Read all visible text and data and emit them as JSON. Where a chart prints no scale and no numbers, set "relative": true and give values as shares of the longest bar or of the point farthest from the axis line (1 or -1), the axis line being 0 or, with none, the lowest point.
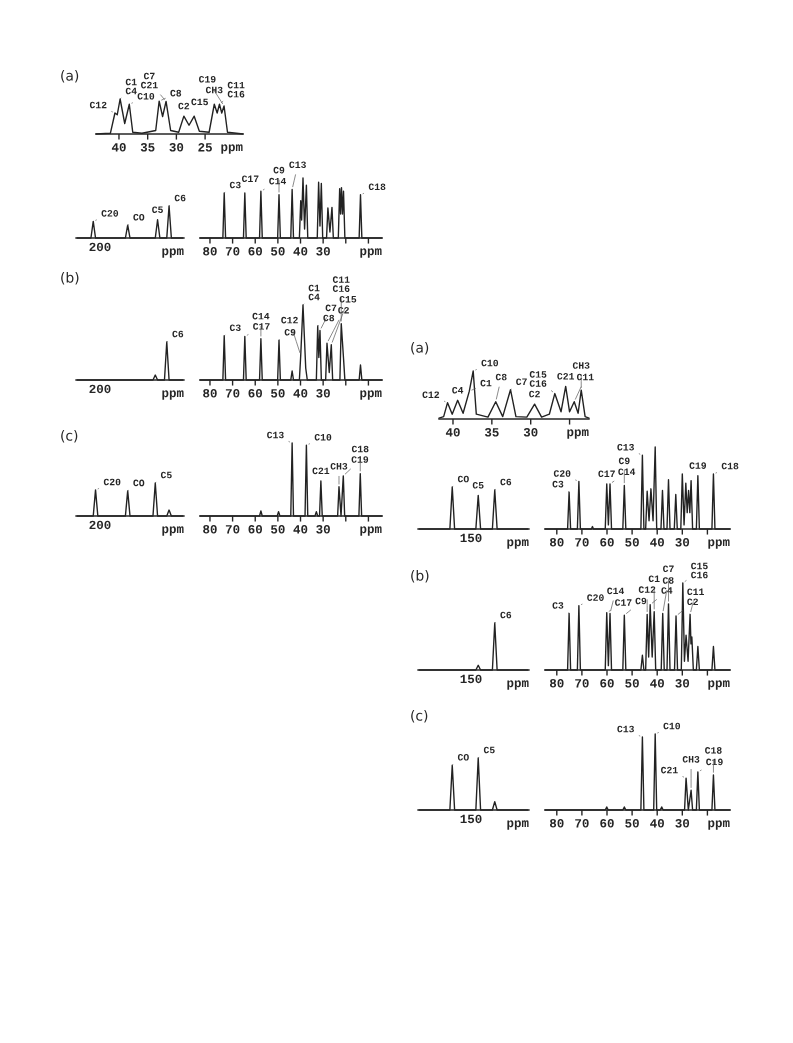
{
  "chart_data": [
    {
      "type": "line",
      "relative": true,
      "title": "(a)",
      "xlabel": "ppm",
      "xlim": [
        44,
        18.4
      ],
      "xticks": [
        40,
        35,
        30,
        25
      ],
      "series": [
        {
          "color": "#222222",
          "x": [
            44,
            41.5,
            40.7,
            40.3,
            39.8,
            39.0,
            38.2,
            37.6,
            36,
            33.6,
            33.0,
            32.4,
            31.8,
            31.0,
            29.6,
            28.7,
            27.8,
            26.9,
            26.0,
            24.3,
            23.4,
            22.9,
            22.5,
            22.1,
            21.7,
            21.1,
            18.4
          ],
          "values": [
            0,
            0.02,
            0.6,
            0.55,
            1,
            0.3,
            0.85,
            0.05,
            0.02,
            0.1,
            0.94,
            0.5,
            0.93,
            0.1,
            0.05,
            0.51,
            0.25,
            0.51,
            0.08,
            0.05,
            0.85,
            0.6,
            0.85,
            0.6,
            0.8,
            0.05,
            0
          ]
        }
      ],
      "annotations": [
        {
          "text": "C12",
          "x": 40.7,
          "y": 0.6
        },
        {
          "text": "C1\nC4",
          "x": 39.8,
          "y": 1
        },
        {
          "text": "C10",
          "x": 38.2,
          "y": 0.85
        },
        {
          "text": "C8",
          "x": 33.0,
          "y": 0.94
        },
        {
          "text": "C7\nC21",
          "x": 31.8,
          "y": 0.93
        },
        {
          "text": "C2",
          "x": 28.7,
          "y": 0.51
        },
        {
          "text": "C15",
          "x": 26.9,
          "y": 0.51
        },
        {
          "text": "CH3",
          "x": 23.4,
          "y": 0.85
        },
        {
          "text": "C11\nC16",
          "x": 22.5,
          "y": 0.85
        },
        {
          "text": "C19",
          "x": 21.7,
          "y": 0.8
        }
      ]
    },
    {
      "type": "line",
      "relative": true,
      "xlabel": "ppm",
      "categories": [
        null,
        null,
        null,
        null,
        null,
        null,
        null,
        null,
        null,
        null,
        null,
        null,
        null,
        null,
        null,
        null,
        null,
        null,
        null,
        null,
        null,
        null,
        null,
        null,
        null,
        null,
        null,
        null,
        null,
        null,
        null,
        null,
        null,
        null,
        null,
        null,
        null,
        null,
        null,
        null,
        null,
        null,
        null,
        null,
        null,
        null,
        null
      ],
      "series": [
        {
          "color": "#222222",
          "values": [
            0,
            0,
            0,
            0,
            0,
            0,
            0,
            0.52,
            0,
            0,
            0,
            0,
            0,
            0,
            0,
            0,
            0,
            0,
            0,
            0,
            0,
            0,
            0.4,
            0,
            0,
            0,
            0,
            0,
            0,
            0,
            0,
            0,
            0,
            0,
            0,
            0.57,
            0,
            0,
            0,
            0,
            1,
            0,
            0,
            0,
            0,
            0,
            0
          ]
        }
      ],
      "annotations": [
        "C20",
        "CO",
        "C5",
        "C6",
        "200"
      ]
    },
    {
      "type": "line",
      "relative": true,
      "xlabel": "ppm",
      "xlim": [
        84.4,
        4
      ],
      "xticks": [
        80,
        70,
        60,
        50,
        40,
        30,
        {
          "value": 20,
          "label": null
        },
        {
          "value": 10,
          "label": null
        }
      ],
      "series": [
        {
          "color": "#222222",
          "x": [
            84.4,
            74.3,
            73.7,
            73.1,
            65.2,
            64.6,
            64.0,
            58.1,
            57.5,
            56.9,
            50.1,
            49.5,
            48.9,
            44.3,
            43.7,
            43.1,
            40.5,
            39.9,
            39.5,
            38.9,
            38.2,
            37.4,
            36.8,
            32.6,
            32.0,
            31.4,
            30.8,
            30.2,
            28.5,
            27.9,
            27.0,
            26.1,
            25.5,
            23.3,
            22.7,
            22.3,
            21.9,
            21.45,
            21.0,
            20.4,
            14.1,
            13.5,
            12.9,
            4
          ],
          "values": [
            0,
            0,
            0.75,
            0,
            0,
            0.75,
            0,
            0,
            0.78,
            0,
            0,
            0.72,
            0,
            0,
            0.81,
            0,
            0,
            0.62,
            0.3,
            1,
            0.15,
            0.88,
            0,
            0,
            0.93,
            0.2,
            0.91,
            0,
            0,
            0.5,
            0.1,
            0.51,
            0,
            0,
            0.82,
            0.4,
            0.84,
            0.4,
            0.78,
            0,
            0,
            0.72,
            0,
            0
          ]
        }
      ],
      "annotations": [
        {
          "text": "C3",
          "x": 73.7,
          "y": 0.75
        },
        {
          "text": "C17",
          "x": 64.6,
          "y": 0.75
        },
        {
          "text": "C14",
          "x": 57.5,
          "y": 0.78
        },
        {
          "text": "C9",
          "x": 49.5,
          "y": 0.72
        },
        {
          "text": "C13",
          "x": 43.7,
          "y": 0.81
        },
        {
          "text": "C18",
          "x": 13.5,
          "y": 0.72
        }
      ]
    },
    {
      "type": "line",
      "relative": true,
      "title": "(b)",
      "xlabel": "ppm",
      "categories": [
        null,
        null,
        null,
        null,
        null,
        null,
        null,
        null,
        null,
        null,
        null,
        null,
        null,
        null,
        null,
        null,
        null,
        null,
        null,
        null,
        null,
        null,
        null,
        null,
        null,
        null,
        null,
        null,
        null,
        null,
        null,
        null,
        null,
        null,
        null,
        null,
        null,
        null,
        null,
        null,
        null,
        null,
        null,
        null,
        null,
        null,
        null
      ],
      "series": [
        {
          "color": "#222222",
          "values": [
            0,
            0,
            0,
            0,
            0,
            0,
            0,
            0,
            0,
            0,
            0,
            0,
            0,
            0,
            0,
            0,
            0,
            0,
            0,
            0,
            0,
            0,
            0,
            0,
            0,
            0,
            0,
            0,
            0,
            0,
            0,
            0,
            0,
            0,
            0.13,
            0,
            0,
            0,
            0,
            1,
            0,
            0,
            0,
            0,
            0,
            0,
            0
          ]
        }
      ],
      "annotations": [
        "C6",
        "200"
      ]
    },
    {
      "type": "line",
      "relative": true,
      "xlabel": "ppm",
      "xlim": [
        84.4,
        4
      ],
      "xticks": [
        80,
        70,
        60,
        50,
        40,
        30,
        {
          "value": 20,
          "label": null
        },
        {
          "value": 10,
          "label": null
        }
      ],
      "series": [
        {
          "color": "#222222",
          "x": [
            84.4,
            74.3,
            73.7,
            73.1,
            65.2,
            64.6,
            64.0,
            58.1,
            57.5,
            56.9,
            50.1,
            49.5,
            48.9,
            44.3,
            43.7,
            43.1,
            40.5,
            39.9,
            38.9,
            37.7,
            37.0,
            33.0,
            32.4,
            31.9,
            31.4,
            30.8,
            28.9,
            28.3,
            27.3,
            26.4,
            25.8,
            22.6,
            22.0,
            21.0,
            20.4,
            14.1,
            13.5,
            12.9,
            4
          ],
          "values": [
            0,
            0,
            0.59,
            0,
            0,
            0.58,
            0,
            0,
            0.55,
            0,
            0,
            0.53,
            0,
            0,
            0.12,
            0,
            0,
            0.33,
            1,
            0.16,
            0,
            0,
            0.72,
            0.3,
            0.66,
            0,
            0,
            0.49,
            0.1,
            0.47,
            0,
            0,
            0.75,
            0.29,
            0,
            0,
            0.2,
            0,
            0
          ]
        }
      ],
      "annotations": [
        {
          "text": "C3",
          "x": 73.7,
          "y": 0.59
        },
        {
          "text": "C17",
          "x": 64.6,
          "y": 0.58
        },
        {
          "text": "C14",
          "x": 57.5,
          "y": 0.55
        },
        {
          "text": "C9",
          "x": 49.5,
          "y": 0.53
        },
        {
          "text": "C12",
          "x": 39.9,
          "y": 0.33
        },
        {
          "text": "C1\nC4",
          "x": 38.9,
          "y": 1
        },
        {
          "text": "C8",
          "x": 32.4,
          "y": 0.72
        },
        {
          "text": "C7",
          "x": 31.4,
          "y": 0.66
        },
        {
          "text": "C2",
          "x": 28.3,
          "y": 0.49
        },
        {
          "text": "C15",
          "x": 26.4,
          "y": 0.47
        },
        {
          "text": "C11\nC16",
          "x": 22.0,
          "y": 0.75
        }
      ]
    },
    {
      "type": "line",
      "relative": true,
      "title": "(c)",
      "xlabel": "ppm",
      "categories": [
        null,
        null,
        null,
        null,
        null,
        null,
        null,
        null,
        null,
        null,
        null,
        null,
        null,
        null,
        null,
        null,
        null,
        null,
        null,
        null,
        null,
        null,
        null,
        null,
        null,
        null,
        null,
        null,
        null,
        null,
        null,
        null,
        null,
        null,
        null,
        null,
        null,
        null,
        null,
        null,
        null,
        null,
        null,
        null,
        null,
        null,
        null
      ],
      "series": [
        {
          "color": "#222222",
          "values": [
            0,
            0,
            0,
            0,
            0,
            0,
            0,
            0,
            0.79,
            0,
            0,
            0,
            0,
            0,
            0,
            0,
            0,
            0,
            0,
            0,
            0,
            0,
            0.76,
            0,
            0,
            0,
            0,
            0,
            0,
            0,
            0,
            0,
            0,
            0,
            1,
            0,
            0,
            0,
            0,
            0,
            0.18,
            0,
            0,
            0,
            0,
            0,
            0
          ]
        }
      ],
      "annotations": [
        "C20",
        "CO",
        "C5",
        "200"
      ]
    },
    {
      "type": "line",
      "relative": true,
      "xlabel": "ppm",
      "xlim": [
        84.4,
        4
      ],
      "xticks": [
        80,
        70,
        60,
        50,
        40,
        30,
        {
          "value": 20,
          "label": null
        },
        {
          "value": 10,
          "label": null
        }
      ],
      "series": [
        {
          "color": "#222222",
          "x": [
            84.4,
            58.1,
            57.5,
            56.9,
            50.3,
            49.7,
            49.1,
            44.3,
            43.7,
            43.1,
            38.0,
            37.4,
            36.8,
            33.6,
            33,
            32.4,
            31.6,
            31.0,
            30.4,
            23.6,
            23.0,
            22.1,
            21.1,
            20.5,
            14.2,
            13.6,
            13.0,
            4
          ],
          "values": [
            0,
            0,
            0.07,
            0,
            0,
            0.06,
            0,
            0,
            1,
            0,
            0,
            0.97,
            0,
            0,
            0.06,
            0,
            0,
            0.48,
            0,
            0,
            0.4,
            0,
            0.55,
            0,
            0,
            0.58,
            0,
            0
          ]
        }
      ],
      "annotations": [
        {
          "text": "C13",
          "x": 43.7,
          "y": 1
        },
        {
          "text": "C10",
          "x": 37.4,
          "y": 0.97
        },
        {
          "text": "C21",
          "x": 31.0,
          "y": 0.48
        },
        {
          "text": "CH3",
          "x": 23.0,
          "y": 0.4
        },
        {
          "text": "C19",
          "x": 21.1,
          "y": 0.55
        },
        {
          "text": "C18",
          "x": 13.6,
          "y": 0.58
        }
      ]
    },
    {
      "type": "line",
      "relative": true,
      "title": "(a)",
      "xlabel": "ppm",
      "xlim": [
        41.8,
        22.5
      ],
      "xticks": [
        40,
        35,
        30,
        {
          "value": 25,
          "label": null
        }
      ],
      "series": [
        {
          "color": "#222222",
          "x": [
            41.8,
            41.2,
            40.7,
            40.1,
            39.4,
            38.7,
            37.9,
            37.4,
            37.0,
            35.5,
            34.5,
            33.6,
            32.6,
            31.9,
            30.5,
            29.5,
            28.6,
            27.6,
            26.9,
            26.1,
            25.5,
            25.0,
            24.4,
            23.9,
            23.5,
            23.0,
            22.5
          ],
          "values": [
            0.02,
            0.05,
            0.34,
            0.1,
            0.39,
            0.12,
            0.58,
            1,
            0.1,
            0.04,
            0.36,
            0.05,
            0.61,
            0.05,
            0.04,
            0.31,
            0.04,
            0.1,
            0.53,
            0.15,
            0.68,
            0.15,
            0.36,
            0.12,
            0.6,
            0.05,
            0.02
          ]
        }
      ],
      "annotations": [
        {
          "text": "C12",
          "x": 40.7,
          "y": 0.34
        },
        {
          "text": "C4",
          "x": 39.4,
          "y": 0.39
        },
        {
          "text": "C1",
          "x": 37.9,
          "y": 0.58
        },
        {
          "text": "C10",
          "x": 37.4,
          "y": 1
        },
        {
          "text": "C8",
          "x": 34.5,
          "y": 0.36
        },
        {
          "text": "C7",
          "x": 32.6,
          "y": 0.61
        },
        {
          "text": "C2",
          "x": 29.5,
          "y": 0.31
        },
        {
          "text": "C15\nC16",
          "x": 26.9,
          "y": 0.53
        },
        {
          "text": "C21",
          "x": 25.5,
          "y": 0.68
        },
        {
          "text": "C11",
          "x": 24.4,
          "y": 0.36
        },
        {
          "text": "CH3",
          "x": 23.5,
          "y": 0.6
        }
      ]
    },
    {
      "type": "line",
      "relative": true,
      "xlabel": "ppm",
      "categories": [
        null,
        null,
        null,
        null,
        null,
        null,
        null,
        null,
        null,
        null,
        null,
        null,
        null,
        null,
        null,
        null,
        null,
        null,
        null,
        null,
        null,
        null,
        null,
        null,
        null,
        null,
        null,
        null,
        null,
        null,
        null,
        null,
        null,
        null,
        null,
        null,
        null,
        null,
        null,
        null,
        null,
        null,
        null,
        null,
        null,
        null,
        null
      ],
      "series": [
        {
          "color": "#222222",
          "values": [
            0,
            0,
            0,
            0,
            0,
            0,
            0,
            0,
            0,
            0,
            0,
            0,
            0,
            0,
            1,
            0,
            0,
            0,
            0,
            0,
            0,
            0,
            0,
            0,
            0,
            0.8,
            0,
            0,
            0,
            0,
            0,
            0,
            0.93,
            0,
            0,
            0,
            0,
            0,
            0,
            0,
            0,
            0,
            0,
            0,
            0,
            0,
            0
          ]
        }
      ],
      "annotations": [
        "CO",
        "C5",
        "C6",
        "150"
      ]
    },
    {
      "type": "line",
      "relative": true,
      "xlabel": "ppm",
      "xlim": [
        84.7,
        11.0
      ],
      "xticks": [
        80,
        70,
        60,
        50,
        40,
        30,
        {
          "value": 20,
          "label": null
        }
      ],
      "series": [
        {
          "color": "#222222",
          "x": [
            84.7,
            75.7,
            75.1,
            74.5,
            71.8,
            71.2,
            70.6,
            66.2,
            65.8,
            65.4,
            60.7,
            60.1,
            59.45,
            58.8,
            58.2,
            53.7,
            53.1,
            52.5,
            46.5,
            45.9,
            45.3,
            44.6,
            44.0,
            43.25,
            42.5,
            41.65,
            40.8,
            40.2,
            38.5,
            37.9,
            37.3,
            36.1,
            35.5,
            34.9,
            33.2,
            32.6,
            32.0,
            30.6,
            30,
            29.3,
            28.6,
            28.05,
            27.5,
            27.0,
            26.5,
            25.9,
            24.4,
            23.8,
            23.2,
            18.2,
            17.6,
            17.0,
            11.0
          ],
          "values": [
            0,
            0,
            0.45,
            0,
            0,
            0.58,
            0,
            0,
            0.03,
            0,
            0,
            0.55,
            0.05,
            0.55,
            0,
            0,
            0.53,
            0,
            0,
            0.9,
            0,
            0,
            0.46,
            0.1,
            0.49,
            0.1,
            1,
            0,
            0,
            0.47,
            0,
            0,
            0.6,
            0,
            0,
            0.42,
            0,
            0,
            0.67,
            0.05,
            0.56,
            0.2,
            0.47,
            0.2,
            0.59,
            0,
            0,
            0.65,
            0,
            0,
            0.67,
            0,
            0
          ]
        }
      ],
      "annotations": [
        {
          "text": "C3",
          "x": 75.1,
          "y": 0.45
        },
        {
          "text": "C20",
          "x": 71.2,
          "y": 0.58
        },
        {
          "text": "C17",
          "x": 60.1,
          "y": 0.55
        },
        {
          "text": "C14",
          "x": 58.8,
          "y": 0.55
        },
        {
          "text": "C9",
          "x": 53.1,
          "y": 0.53
        },
        {
          "text": "C13",
          "x": 45.9,
          "y": 0.9
        },
        {
          "text": "C19",
          "x": 23.8,
          "y": 0.65
        },
        {
          "text": "C18",
          "x": 17.6,
          "y": 0.67
        }
      ]
    },
    {
      "type": "line",
      "relative": true,
      "title": "(b)",
      "xlabel": "ppm",
      "categories": [
        null,
        null,
        null,
        null,
        null,
        null,
        null,
        null,
        null,
        null,
        null,
        null,
        null,
        null,
        null,
        null,
        null,
        null,
        null,
        null,
        null,
        null,
        null,
        null,
        null,
        null,
        null,
        null,
        null,
        null,
        null,
        null,
        null,
        null,
        null,
        null,
        null,
        null,
        null,
        null,
        null,
        null,
        null,
        null,
        null,
        null,
        null
      ],
      "series": [
        {
          "color": "#222222",
          "values": [
            0,
            0,
            0,
            0,
            0,
            0,
            0,
            0,
            0,
            0,
            0,
            0,
            0,
            0,
            0,
            0,
            0,
            0,
            0,
            0,
            0,
            0,
            0,
            0,
            0,
            0.1,
            0,
            0,
            0,
            0,
            0,
            0,
            1,
            0,
            0,
            0,
            0,
            0,
            0,
            0,
            0,
            0,
            0,
            0,
            0,
            0,
            0
          ]
        }
      ],
      "annotations": [
        "C6",
        "150"
      ]
    },
    {
      "type": "line",
      "relative": true,
      "xlabel": "ppm",
      "xlim": [
        84.7,
        11.0
      ],
      "xticks": [
        80,
        70,
        60,
        50,
        40,
        30,
        {
          "value": 20,
          "label": null
        }
      ],
      "series": [
        {
          "color": "#222222",
          "x": [
            84.7,
            75.7,
            75.1,
            74.5,
            71.8,
            71.2,
            70.6,
            60.7,
            60.1,
            59.45,
            58.8,
            58.2,
            53.7,
            53.1,
            52.5,
            46.5,
            45.9,
            45.3,
            44.6,
            44.0,
            43.4,
            42.8,
            42.0,
            41.2,
            40.6,
            38.4,
            37.8,
            37.2,
            36.1,
            35.5,
            34.9,
            33.1,
            32.5,
            31.9,
            30.4,
            29.8,
            29.15,
            28.5,
            27.7,
            26.9,
            26.55,
            26.2,
            25.6,
            24.4,
            23.8,
            23.2,
            18.2,
            17.6,
            17.0,
            11.0
          ],
          "values": [
            0,
            0,
            0.65,
            0,
            0,
            0.74,
            0,
            0,
            0.66,
            0.05,
            0.65,
            0,
            0,
            0.63,
            0,
            0,
            0.17,
            0,
            0,
            0.64,
            0.15,
            0.75,
            0.15,
            0.67,
            0,
            0,
            0.65,
            0,
            0,
            0.76,
            0,
            0,
            0.62,
            0,
            0,
            1,
            0.1,
            0.4,
            0.1,
            0.64,
            0.3,
            0.38,
            0,
            0,
            0.27,
            0,
            0,
            0.27,
            0,
            0
          ]
        }
      ],
      "annotations": [
        {
          "text": "C3",
          "x": 75.1,
          "y": 0.65
        },
        {
          "text": "C20",
          "x": 71.2,
          "y": 0.74
        },
        {
          "text": "C17",
          "x": 60.1,
          "y": 0.66
        },
        {
          "text": "C14",
          "x": 58.8,
          "y": 0.65
        },
        {
          "text": "C9",
          "x": 53.1,
          "y": 0.63
        },
        {
          "text": "C12",
          "x": 44.0,
          "y": 0.64
        },
        {
          "text": "C4",
          "x": 42.8,
          "y": 0.75
        },
        {
          "text": "C1",
          "x": 41.2,
          "y": 0.67
        },
        {
          "text": "C8",
          "x": 37.8,
          "y": 0.65
        },
        {
          "text": "C7",
          "x": 35.5,
          "y": 0.76
        },
        {
          "text": "C2",
          "x": 32.5,
          "y": 0.62
        },
        {
          "text": "C15\nC16",
          "x": 29.8,
          "y": 1
        },
        {
          "text": "C11",
          "x": 26.9,
          "y": 0.64
        }
      ]
    },
    {
      "type": "line",
      "relative": true,
      "title": "(c)",
      "xlabel": "ppm",
      "categories": [
        null,
        null,
        null,
        null,
        null,
        null,
        null,
        null,
        null,
        null,
        null,
        null,
        null,
        null,
        null,
        null,
        null,
        null,
        null,
        null,
        null,
        null,
        null,
        null,
        null,
        null,
        null,
        null,
        null,
        null,
        null,
        null,
        null,
        null,
        null,
        null,
        null,
        null,
        null,
        null,
        null,
        null,
        null,
        null,
        null,
        null,
        null
      ],
      "series": [
        {
          "color": "#222222",
          "values": [
            0,
            0,
            0,
            0,
            0,
            0,
            0,
            0,
            0,
            0,
            0,
            0,
            0,
            0,
            0.86,
            0,
            0,
            0,
            0,
            0,
            0,
            0,
            0,
            0,
            0,
            1,
            0,
            0,
            0,
            0,
            0,
            0,
            0.16,
            0,
            0,
            0,
            0,
            0,
            0,
            0,
            0,
            0,
            0,
            0,
            0,
            0,
            0
          ]
        }
      ],
      "annotations": [
        "CO",
        "C5",
        "150"
      ]
    },
    {
      "type": "line",
      "relative": true,
      "xlabel": "ppm",
      "xlim": [
        84.7,
        11.0
      ],
      "xticks": [
        80,
        70,
        60,
        50,
        40,
        30,
        {
          "value": 20,
          "label": null
        }
      ],
      "series": [
        {
          "color": "#222222",
          "x": [
            84.7,
            60.7,
            60.1,
            59.5,
            53.7,
            53.1,
            52.5,
            46.5,
            45.9,
            45.3,
            41.4,
            40.8,
            40.2,
            38.8,
            38.2,
            37.6,
            29.1,
            28.5,
            27.6,
            26.5,
            25.9,
            24.4,
            23.8,
            23.2,
            18.2,
            17.6,
            17.0,
            11.0
          ],
          "values": [
            0,
            0,
            0.04,
            0,
            0,
            0.04,
            0,
            0,
            0.96,
            0,
            0,
            1,
            0,
            0,
            0.04,
            0,
            0,
            0.42,
            0,
            0.26,
            0,
            0,
            0.5,
            0,
            0,
            0.46,
            0,
            0
          ]
        }
      ],
      "annotations": [
        {
          "text": "C13",
          "x": 45.9,
          "y": 0.96
        },
        {
          "text": "C10",
          "x": 40.8,
          "y": 1
        },
        {
          "text": "C21",
          "x": 28.5,
          "y": 0.42
        },
        {
          "text": "CH3",
          "x": 26.5,
          "y": 0.26
        },
        {
          "text": "C19",
          "x": 23.8,
          "y": 0.5
        },
        {
          "text": "C18",
          "x": 17.6,
          "y": 0.46
        }
      ]
    }
  ]
}
